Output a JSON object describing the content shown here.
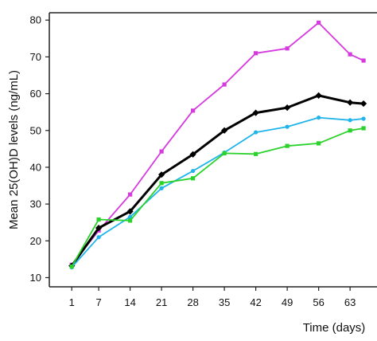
{
  "chart_data": {
    "type": "line",
    "xlabel": "Time (days)",
    "ylabel": "Mean 25(OH)D levels (ng/mL)",
    "x": [
      1,
      7,
      14,
      21,
      28,
      35,
      42,
      49,
      56,
      63
    ],
    "x_tick_labels": [
      "1",
      "7",
      "14",
      "21",
      "28",
      "35",
      "42",
      "49",
      "56",
      "63"
    ],
    "xlim": [
      -4,
      69
    ],
    "ylim": [
      7.5,
      82
    ],
    "y_ticks": [
      10,
      20,
      30,
      40,
      50,
      60,
      70,
      80
    ],
    "y_tick_labels": [
      "10",
      "20",
      "30",
      "40",
      "50",
      "60",
      "70",
      "80"
    ],
    "grid": false,
    "legend": "none",
    "series": [
      {
        "color": "#d63adf",
        "marker": "square",
        "line_width": "thin",
        "x": [
          1,
          7,
          14,
          21,
          28,
          35,
          42,
          49,
          56,
          63,
          66
        ],
        "values": [
          13.5,
          22.8,
          32.6,
          44.3,
          55.4,
          62.5,
          71.0,
          72.3,
          79.3,
          70.7,
          69.0
        ]
      },
      {
        "color": "#000000",
        "marker": "diamond",
        "line_width": "thick",
        "x": [
          1,
          7,
          14,
          21,
          28,
          35,
          42,
          49,
          56,
          63,
          66
        ],
        "values": [
          13.2,
          23.5,
          28.0,
          38.0,
          43.5,
          50.0,
          54.8,
          56.2,
          59.5,
          57.6,
          57.3
        ]
      },
      {
        "color": "#1fb4ea",
        "marker": "circle",
        "line_width": "thin",
        "x": [
          1,
          7,
          14,
          21,
          28,
          35,
          42,
          49,
          56,
          63,
          66
        ],
        "values": [
          12.8,
          21.0,
          26.5,
          34.3,
          39.0,
          44.0,
          49.5,
          51.0,
          53.5,
          52.8,
          53.2
        ]
      },
      {
        "color": "#2bd22b",
        "marker": "square",
        "line_width": "thin",
        "x": [
          1,
          7,
          14,
          21,
          28,
          35,
          42,
          49,
          56,
          63,
          66
        ],
        "values": [
          13.0,
          25.8,
          25.5,
          35.7,
          37.0,
          43.8,
          43.6,
          45.8,
          46.5,
          50.0,
          50.6
        ]
      }
    ]
  }
}
